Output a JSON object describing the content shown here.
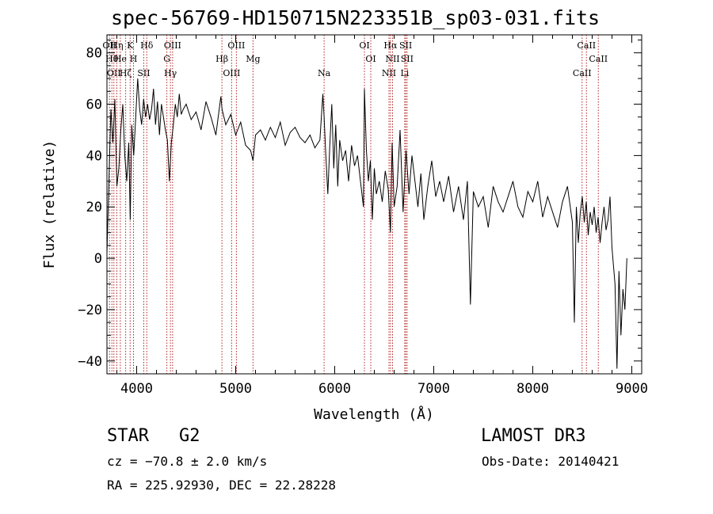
{
  "chart_data": {
    "type": "line",
    "title": "spec-56769-HD150715N223351B_sp03-031.fits",
    "xlabel": "Wavelength (Å)",
    "ylabel": "Flux (relative)",
    "xlim": [
      3700,
      9100
    ],
    "ylim": [
      -45,
      87
    ],
    "xticks": [
      4000,
      5000,
      6000,
      7000,
      8000,
      9000
    ],
    "yticks": [
      -40,
      -20,
      0,
      20,
      40,
      60,
      80
    ],
    "xtick_labels": [
      "4000",
      "5000",
      "6000",
      "7000",
      "8000",
      "9000"
    ],
    "ytick_labels": [
      "−40",
      "−20",
      "0",
      "20",
      "40",
      "60",
      "80"
    ],
    "grid": false,
    "line_color": "#000000",
    "marker_color": "#b22222",
    "series": [
      {
        "x": [
          3700,
          3720,
          3740,
          3760,
          3780,
          3800,
          3820,
          3840,
          3860,
          3880,
          3900,
          3920,
          3935,
          3950,
          3970,
          3990,
          4010,
          4030,
          4050,
          4070,
          4090,
          4110,
          4130,
          4150,
          4170,
          4190,
          4210,
          4230,
          4250,
          4270,
          4290,
          4310,
          4330,
          4350,
          4370,
          4390,
          4410,
          4430,
          4450,
          4470,
          4500,
          4550,
          4600,
          4650,
          4700,
          4750,
          4800,
          4850,
          4862,
          4900,
          4950,
          5000,
          5050,
          5100,
          5150,
          5175,
          5200,
          5250,
          5300,
          5350,
          5400,
          5450,
          5500,
          5550,
          5600,
          5650,
          5700,
          5750,
          5800,
          5850,
          5880,
          5893,
          5910,
          5930,
          5950,
          5970,
          5990,
          6010,
          6030,
          6050,
          6080,
          6110,
          6140,
          6170,
          6200,
          6230,
          6260,
          6290,
          6300,
          6320,
          6340,
          6360,
          6380,
          6400,
          6420,
          6450,
          6480,
          6510,
          6540,
          6563,
          6580,
          6600,
          6630,
          6660,
          6690,
          6720,
          6750,
          6780,
          6810,
          6840,
          6870,
          6900,
          6940,
          6980,
          7020,
          7060,
          7100,
          7150,
          7200,
          7250,
          7300,
          7340,
          7370,
          7400,
          7450,
          7500,
          7550,
          7600,
          7650,
          7700,
          7750,
          7800,
          7850,
          7900,
          7950,
          8000,
          8050,
          8100,
          8150,
          8200,
          8250,
          8300,
          8350,
          8400,
          8420,
          8440,
          8460,
          8480,
          8500,
          8520,
          8540,
          8560,
          8580,
          8600,
          8620,
          8640,
          8660,
          8680,
          8700,
          8720,
          8740,
          8760,
          8780,
          8800,
          8830,
          8850,
          8870,
          8890,
          8910,
          8930,
          8950
        ],
        "values": [
          2,
          30,
          58,
          45,
          62,
          28,
          35,
          50,
          60,
          40,
          30,
          45,
          15,
          52,
          40,
          55,
          70,
          58,
          52,
          62,
          55,
          60,
          54,
          58,
          66,
          52,
          61,
          48,
          60,
          55,
          50,
          46,
          30,
          45,
          52,
          60,
          55,
          64,
          56,
          58,
          60,
          54,
          57,
          50,
          61,
          55,
          48,
          63,
          58,
          52,
          56,
          48,
          53,
          44,
          42,
          38,
          48,
          50,
          46,
          51,
          47,
          53,
          44,
          49,
          51,
          47,
          45,
          48,
          43,
          46,
          64,
          55,
          40,
          25,
          44,
          60,
          35,
          52,
          28,
          46,
          38,
          42,
          30,
          44,
          36,
          40,
          30,
          20,
          66,
          42,
          30,
          38,
          15,
          35,
          25,
          30,
          22,
          34,
          27,
          10,
          45,
          20,
          28,
          50,
          18,
          42,
          25,
          40,
          30,
          20,
          33,
          15,
          28,
          38,
          24,
          30,
          22,
          32,
          18,
          28,
          15,
          30,
          -18,
          26,
          20,
          24,
          12,
          28,
          22,
          18,
          24,
          30,
          20,
          16,
          26,
          22,
          30,
          16,
          24,
          18,
          12,
          22,
          28,
          14,
          -25,
          20,
          6,
          18,
          24,
          14,
          22,
          9,
          18,
          13,
          20,
          10,
          16,
          6,
          14,
          20,
          11,
          15,
          24,
          4,
          -10,
          -43,
          -5,
          -30,
          -12,
          -20,
          0
        ]
      }
    ],
    "lines": [
      {
        "wave": 3726,
        "label": "OII"
      },
      {
        "wave": 3750,
        "label": "Hθ"
      },
      {
        "wave": 3770,
        "label": "OII"
      },
      {
        "wave": 3800,
        "label": "Hη"
      },
      {
        "wave": 3835,
        "label": "He"
      },
      {
        "wave": 3889,
        "label": "Hζ"
      },
      {
        "wave": 3934,
        "label": "K"
      },
      {
        "wave": 3968,
        "label": "H"
      },
      {
        "wave": 4072,
        "label": "SII"
      },
      {
        "wave": 4102,
        "label": "Hδ"
      },
      {
        "wave": 4305,
        "label": "G"
      },
      {
        "wave": 4341,
        "label": "Hγ"
      },
      {
        "wave": 4363,
        "label": "OIII"
      },
      {
        "wave": 4861,
        "label": "Hβ"
      },
      {
        "wave": 4959,
        "label": "OIII"
      },
      {
        "wave": 5007,
        "label": "OIII"
      },
      {
        "wave": 5175,
        "label": "Mg"
      },
      {
        "wave": 5893,
        "label": "Na"
      },
      {
        "wave": 6300,
        "label": "OI"
      },
      {
        "wave": 6364,
        "label": "OI"
      },
      {
        "wave": 6548,
        "label": "NII"
      },
      {
        "wave": 6563,
        "label": "Hα"
      },
      {
        "wave": 6584,
        "label": "NII"
      },
      {
        "wave": 6707,
        "label": "Li"
      },
      {
        "wave": 6717,
        "label": "SII"
      },
      {
        "wave": 6731,
        "label": "SII"
      },
      {
        "wave": 8498,
        "label": "CaII"
      },
      {
        "wave": 8542,
        "label": "CaII"
      },
      {
        "wave": 8662,
        "label": "CaII"
      }
    ]
  },
  "info": {
    "object_class": "STAR",
    "subclass": "G2",
    "cz": "cz = −70.8 ± 2.0 km/s",
    "coords": "RA = 225.92930, DEC =  22.28228",
    "survey": "LAMOST DR3",
    "obs_date": "Obs-Date: 20140421"
  }
}
